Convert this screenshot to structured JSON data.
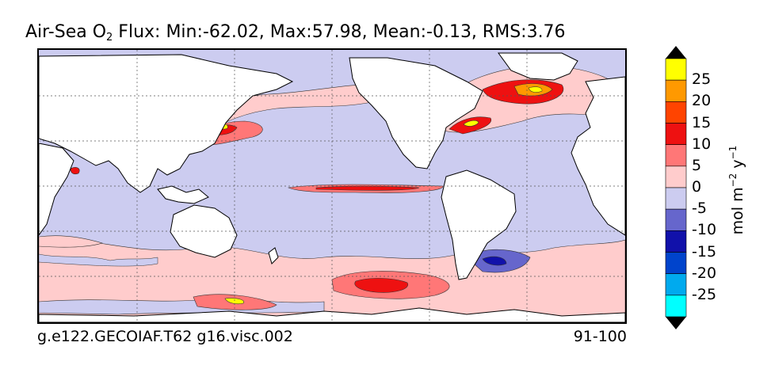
{
  "title": {
    "prefix": "Air-Sea O",
    "subscript": "2",
    "rest": " Flux: Min:-62.02, Max:57.98, Mean:-0.13, RMS:3.76"
  },
  "footer": {
    "left": "g.e122.GECOIAF.T62 g16.visc.002",
    "right": "91-100"
  },
  "colorbar": {
    "units_main": "mol m",
    "units_exp1": "−2",
    "units_mid": " y",
    "units_exp2": "−1",
    "ticks": [
      "25",
      "20",
      "15",
      "10",
      "5",
      "0",
      "-5",
      "-10",
      "-15",
      "-20",
      "-25"
    ],
    "colors": [
      "#ffff00",
      "#ff9900",
      "#ff4400",
      "#ee1111",
      "#ff7777",
      "#ffcccc",
      "#ccccf0",
      "#6666cc",
      "#1111aa",
      "#0044cc",
      "#00aaee",
      "#00ffff"
    ],
    "over_color": "#000000",
    "under_color": "#000000"
  },
  "map": {
    "ocean_base_color": "#ccccf0",
    "land_color": "#ffffff",
    "grid": true
  }
}
